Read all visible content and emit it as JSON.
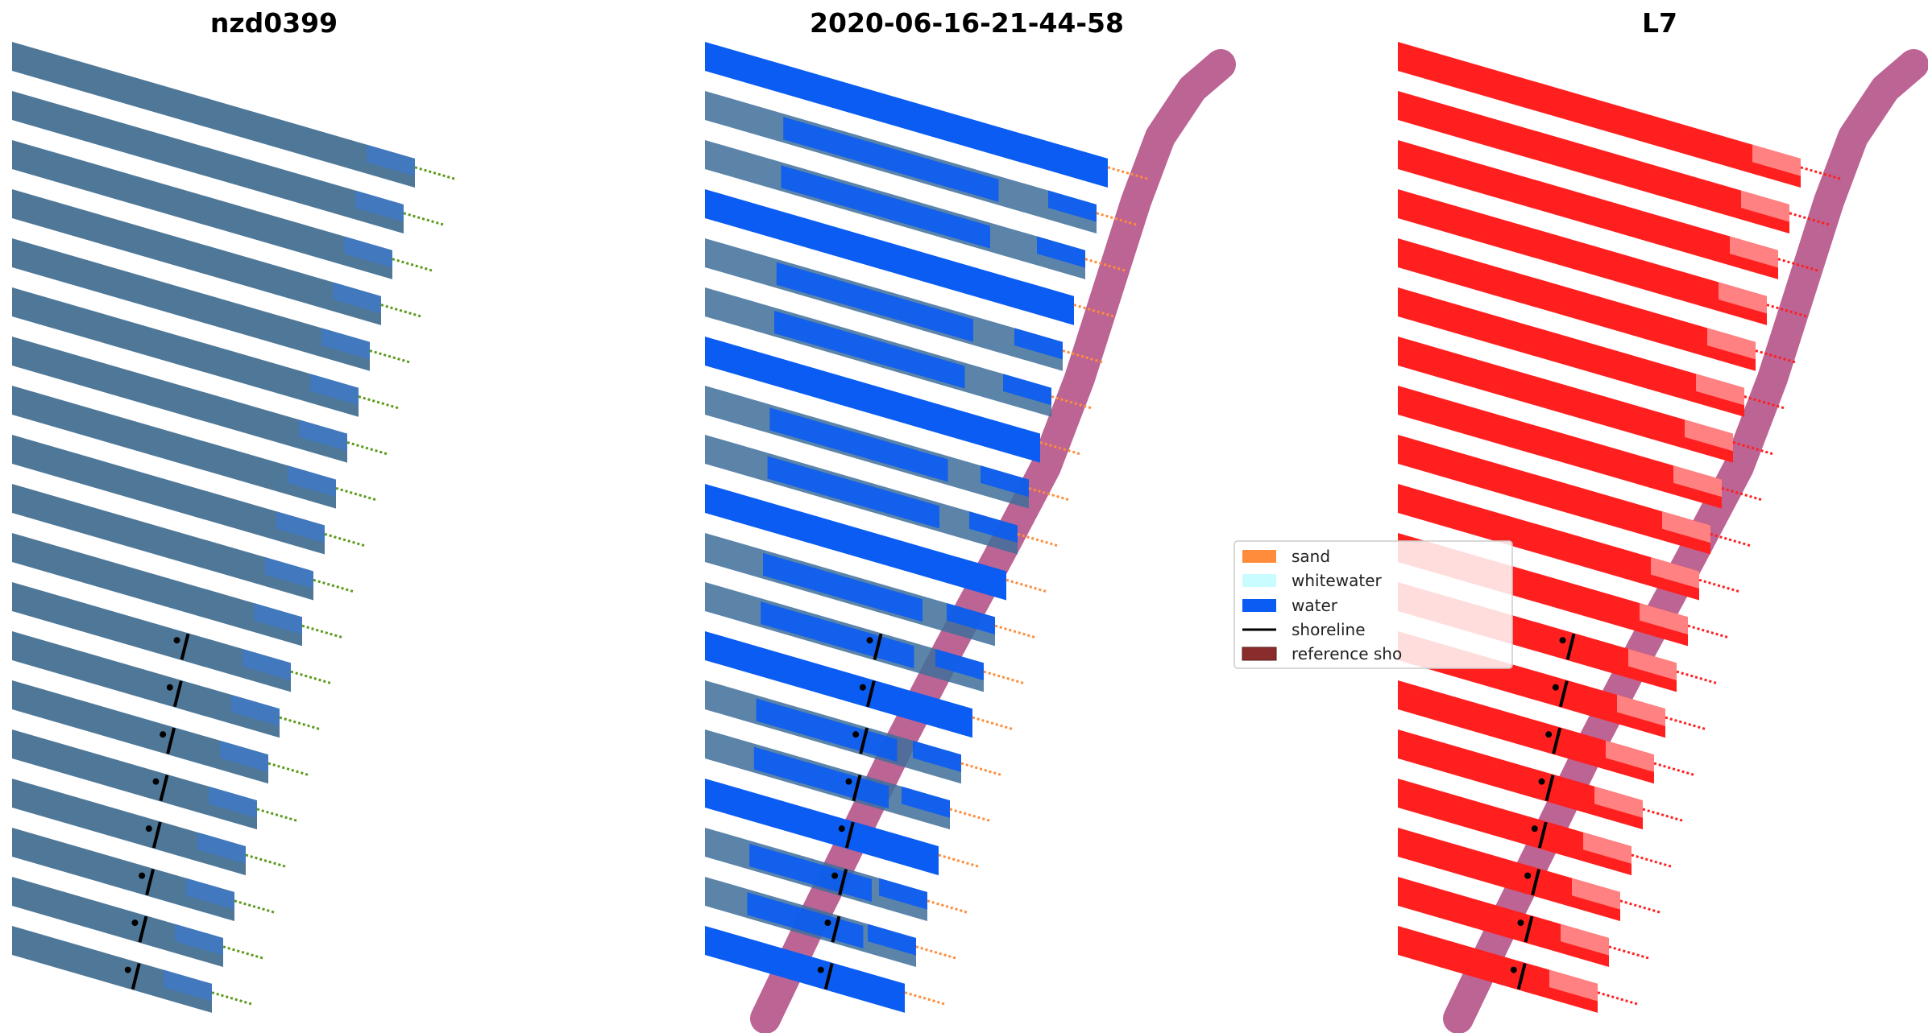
{
  "panels": [
    {
      "title": "nzd0399",
      "kind": "rgb"
    },
    {
      "title": "2020-06-16-21-44-58",
      "kind": "classified"
    },
    {
      "title": "L7",
      "kind": "index"
    }
  ],
  "legend": {
    "items": [
      {
        "label": "sand",
        "color": "#ff8c3a",
        "kind": "patch"
      },
      {
        "label": "whitewater",
        "color": "#c8fcff",
        "kind": "patch"
      },
      {
        "label": "water",
        "color": "#0a5cf2",
        "kind": "patch"
      },
      {
        "label": "shoreline",
        "color": "#000000",
        "kind": "line"
      },
      {
        "label": "reference sho",
        "color": "#8b2c2c",
        "kind": "patch"
      }
    ]
  },
  "colors": {
    "reference_band": "#b85c8e",
    "rgb_land": "#4f7898",
    "rgb_water": "#3f78c2",
    "water": "#0a5cf2",
    "sand": "#ff8c3a",
    "whitewater": "#c8fcff",
    "index": "#ff1f1f",
    "index_light": "#ff8c8c",
    "green_strip": "#5a9a1a",
    "shoreline": "#000000"
  },
  "icons": {
    "legend_patch": "square-swatch",
    "legend_line": "line-swatch"
  }
}
